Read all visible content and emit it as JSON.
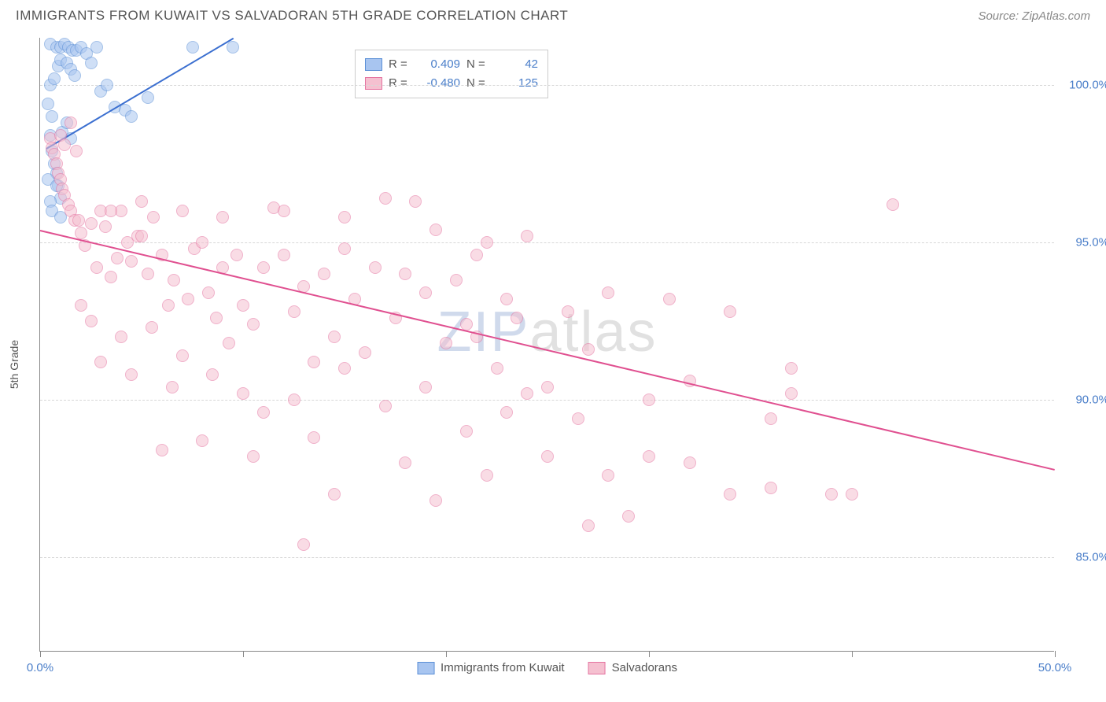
{
  "header": {
    "title": "IMMIGRANTS FROM KUWAIT VS SALVADORAN 5TH GRADE CORRELATION CHART",
    "source": "Source: ZipAtlas.com"
  },
  "chart": {
    "type": "scatter",
    "ylabel": "5th Grade",
    "watermark": {
      "zip": "ZIP",
      "atlas": "atlas"
    },
    "background_color": "#ffffff",
    "grid_color": "#d8d8d8",
    "axis_color": "#888888",
    "tick_label_color": "#4a7ec9",
    "xlim": [
      0,
      50
    ],
    "ylim": [
      82,
      101.5
    ],
    "xticks": [
      0,
      10,
      20,
      30,
      40,
      50
    ],
    "xtick_labels": {
      "0": "0.0%",
      "50": "50.0%"
    },
    "yticks": [
      85,
      90,
      95,
      100
    ],
    "ytick_labels": {
      "85": "85.0%",
      "90": "90.0%",
      "95": "95.0%",
      "100": "100.0%"
    },
    "marker_radius": 8,
    "marker_opacity": 0.55,
    "series": [
      {
        "key": "kuwait",
        "label": "Immigrants from Kuwait",
        "color_fill": "#a8c5f0",
        "color_stroke": "#5b8fd6",
        "R": "0.409",
        "N": "42",
        "trend": {
          "x1": 0.3,
          "y1": 98.0,
          "x2": 9.5,
          "y2": 101.5,
          "color": "#3b6fd0",
          "width": 2
        },
        "points": [
          [
            0.5,
            101.3
          ],
          [
            0.8,
            101.2
          ],
          [
            1.0,
            101.2
          ],
          [
            1.2,
            101.3
          ],
          [
            1.4,
            101.2
          ],
          [
            1.6,
            101.1
          ],
          [
            1.8,
            101.1
          ],
          [
            0.4,
            99.4
          ],
          [
            0.6,
            99.0
          ],
          [
            0.5,
            100.0
          ],
          [
            0.7,
            100.2
          ],
          [
            0.9,
            100.6
          ],
          [
            1.0,
            100.8
          ],
          [
            1.3,
            100.7
          ],
          [
            1.5,
            100.5
          ],
          [
            1.7,
            100.3
          ],
          [
            2.0,
            101.2
          ],
          [
            2.3,
            101.0
          ],
          [
            2.5,
            100.7
          ],
          [
            2.8,
            101.2
          ],
          [
            3.0,
            99.8
          ],
          [
            3.3,
            100.0
          ],
          [
            3.7,
            99.3
          ],
          [
            4.2,
            99.2
          ],
          [
            4.5,
            99.0
          ],
          [
            5.3,
            99.6
          ],
          [
            7.5,
            101.2
          ],
          [
            9.5,
            101.2
          ],
          [
            0.5,
            98.4
          ],
          [
            0.6,
            97.9
          ],
          [
            0.7,
            97.5
          ],
          [
            0.8,
            97.2
          ],
          [
            0.9,
            96.8
          ],
          [
            1.0,
            96.4
          ],
          [
            1.1,
            98.5
          ],
          [
            1.3,
            98.8
          ],
          [
            1.5,
            98.3
          ],
          [
            0.4,
            97.0
          ],
          [
            0.5,
            96.3
          ],
          [
            0.6,
            96.0
          ],
          [
            0.8,
            96.8
          ],
          [
            1.0,
            95.8
          ]
        ]
      },
      {
        "key": "salvadoran",
        "label": "Salvadorans",
        "color_fill": "#f5c0d0",
        "color_stroke": "#e573a0",
        "R": "-0.480",
        "N": "125",
        "trend": {
          "x1": 0,
          "y1": 95.4,
          "x2": 50,
          "y2": 87.8,
          "color": "#e05090",
          "width": 2
        },
        "points": [
          [
            0.5,
            98.3
          ],
          [
            0.6,
            98.0
          ],
          [
            0.7,
            97.8
          ],
          [
            0.8,
            97.5
          ],
          [
            0.9,
            97.2
          ],
          [
            1.0,
            97.0
          ],
          [
            1.1,
            96.7
          ],
          [
            1.2,
            96.5
          ],
          [
            1.4,
            96.2
          ],
          [
            1.5,
            96.0
          ],
          [
            1.7,
            95.7
          ],
          [
            1.9,
            95.7
          ],
          [
            1.0,
            98.4
          ],
          [
            1.2,
            98.1
          ],
          [
            1.5,
            98.8
          ],
          [
            1.8,
            97.9
          ],
          [
            2.0,
            95.3
          ],
          [
            2.2,
            94.9
          ],
          [
            2.5,
            95.6
          ],
          [
            2.8,
            94.2
          ],
          [
            3.0,
            96.0
          ],
          [
            3.2,
            95.5
          ],
          [
            3.5,
            93.9
          ],
          [
            3.8,
            94.5
          ],
          [
            4.0,
            96.0
          ],
          [
            4.3,
            95.0
          ],
          [
            4.5,
            94.4
          ],
          [
            4.8,
            95.2
          ],
          [
            5.0,
            95.2
          ],
          [
            5.3,
            94.0
          ],
          [
            5.6,
            95.8
          ],
          [
            6.0,
            94.6
          ],
          [
            6.3,
            93.0
          ],
          [
            6.6,
            93.8
          ],
          [
            7.0,
            96.0
          ],
          [
            7.3,
            93.2
          ],
          [
            7.6,
            94.8
          ],
          [
            8.0,
            95.0
          ],
          [
            8.3,
            93.4
          ],
          [
            8.7,
            92.6
          ],
          [
            9.0,
            94.2
          ],
          [
            9.3,
            91.8
          ],
          [
            9.7,
            94.6
          ],
          [
            10.0,
            93.0
          ],
          [
            10.5,
            92.4
          ],
          [
            11.0,
            94.2
          ],
          [
            11.5,
            96.1
          ],
          [
            12.0,
            94.6
          ],
          [
            12.5,
            92.8
          ],
          [
            13.0,
            93.6
          ],
          [
            13.5,
            91.2
          ],
          [
            14.0,
            94.0
          ],
          [
            14.5,
            92.0
          ],
          [
            15.0,
            94.8
          ],
          [
            15.5,
            93.2
          ],
          [
            16.0,
            91.5
          ],
          [
            16.5,
            94.2
          ],
          [
            17.0,
            96.4
          ],
          [
            17.5,
            92.6
          ],
          [
            18.0,
            94.0
          ],
          [
            18.5,
            96.3
          ],
          [
            19.0,
            93.4
          ],
          [
            19.5,
            95.4
          ],
          [
            20.0,
            91.8
          ],
          [
            20.5,
            93.8
          ],
          [
            21.0,
            92.4
          ],
          [
            21.5,
            94.6
          ],
          [
            22.0,
            95.0
          ],
          [
            22.5,
            91.0
          ],
          [
            23.0,
            93.2
          ],
          [
            23.5,
            92.6
          ],
          [
            24.0,
            95.2
          ],
          [
            25.0,
            90.4
          ],
          [
            26.0,
            92.8
          ],
          [
            27.0,
            91.6
          ],
          [
            28.0,
            93.4
          ],
          [
            30.0,
            90.0
          ],
          [
            31.0,
            93.2
          ],
          [
            32.0,
            90.6
          ],
          [
            34.0,
            92.8
          ],
          [
            36.0,
            89.4
          ],
          [
            37.0,
            91.0
          ],
          [
            40.0,
            87.0
          ],
          [
            3.5,
            96.0
          ],
          [
            5.0,
            96.3
          ],
          [
            9.0,
            95.8
          ],
          [
            12.0,
            96.0
          ],
          [
            15.0,
            95.8
          ],
          [
            2.5,
            92.5
          ],
          [
            4.0,
            92.0
          ],
          [
            5.5,
            92.3
          ],
          [
            7.0,
            91.4
          ],
          [
            8.5,
            90.8
          ],
          [
            10.0,
            90.2
          ],
          [
            11.0,
            89.6
          ],
          [
            12.5,
            90.0
          ],
          [
            13.5,
            88.8
          ],
          [
            15.0,
            91.0
          ],
          [
            17.0,
            89.8
          ],
          [
            19.0,
            90.4
          ],
          [
            21.0,
            89.0
          ],
          [
            23.0,
            89.6
          ],
          [
            25.0,
            88.2
          ],
          [
            28.0,
            87.6
          ],
          [
            30.0,
            88.2
          ],
          [
            32.0,
            88.0
          ],
          [
            34.0,
            87.0
          ],
          [
            36.0,
            87.2
          ],
          [
            39.0,
            87.0
          ],
          [
            42.0,
            96.2
          ],
          [
            27.0,
            86.0
          ],
          [
            29.0,
            86.3
          ],
          [
            37.0,
            90.2
          ],
          [
            13.0,
            85.4
          ],
          [
            6.0,
            88.4
          ],
          [
            8.0,
            88.7
          ],
          [
            10.5,
            88.2
          ],
          [
            18.0,
            88.0
          ],
          [
            2.0,
            93.0
          ],
          [
            3.0,
            91.2
          ],
          [
            4.5,
            90.8
          ],
          [
            6.5,
            90.4
          ],
          [
            14.5,
            87.0
          ],
          [
            22.0,
            87.6
          ],
          [
            24.0,
            90.2
          ],
          [
            26.5,
            89.4
          ],
          [
            19.5,
            86.8
          ],
          [
            21.5,
            92.0
          ]
        ]
      }
    ],
    "legend_bottom": [
      {
        "swatch_fill": "#a8c5f0",
        "swatch_stroke": "#5b8fd6",
        "label": "Immigrants from Kuwait"
      },
      {
        "swatch_fill": "#f5c0d0",
        "swatch_stroke": "#e573a0",
        "label": "Salvadorans"
      }
    ]
  }
}
